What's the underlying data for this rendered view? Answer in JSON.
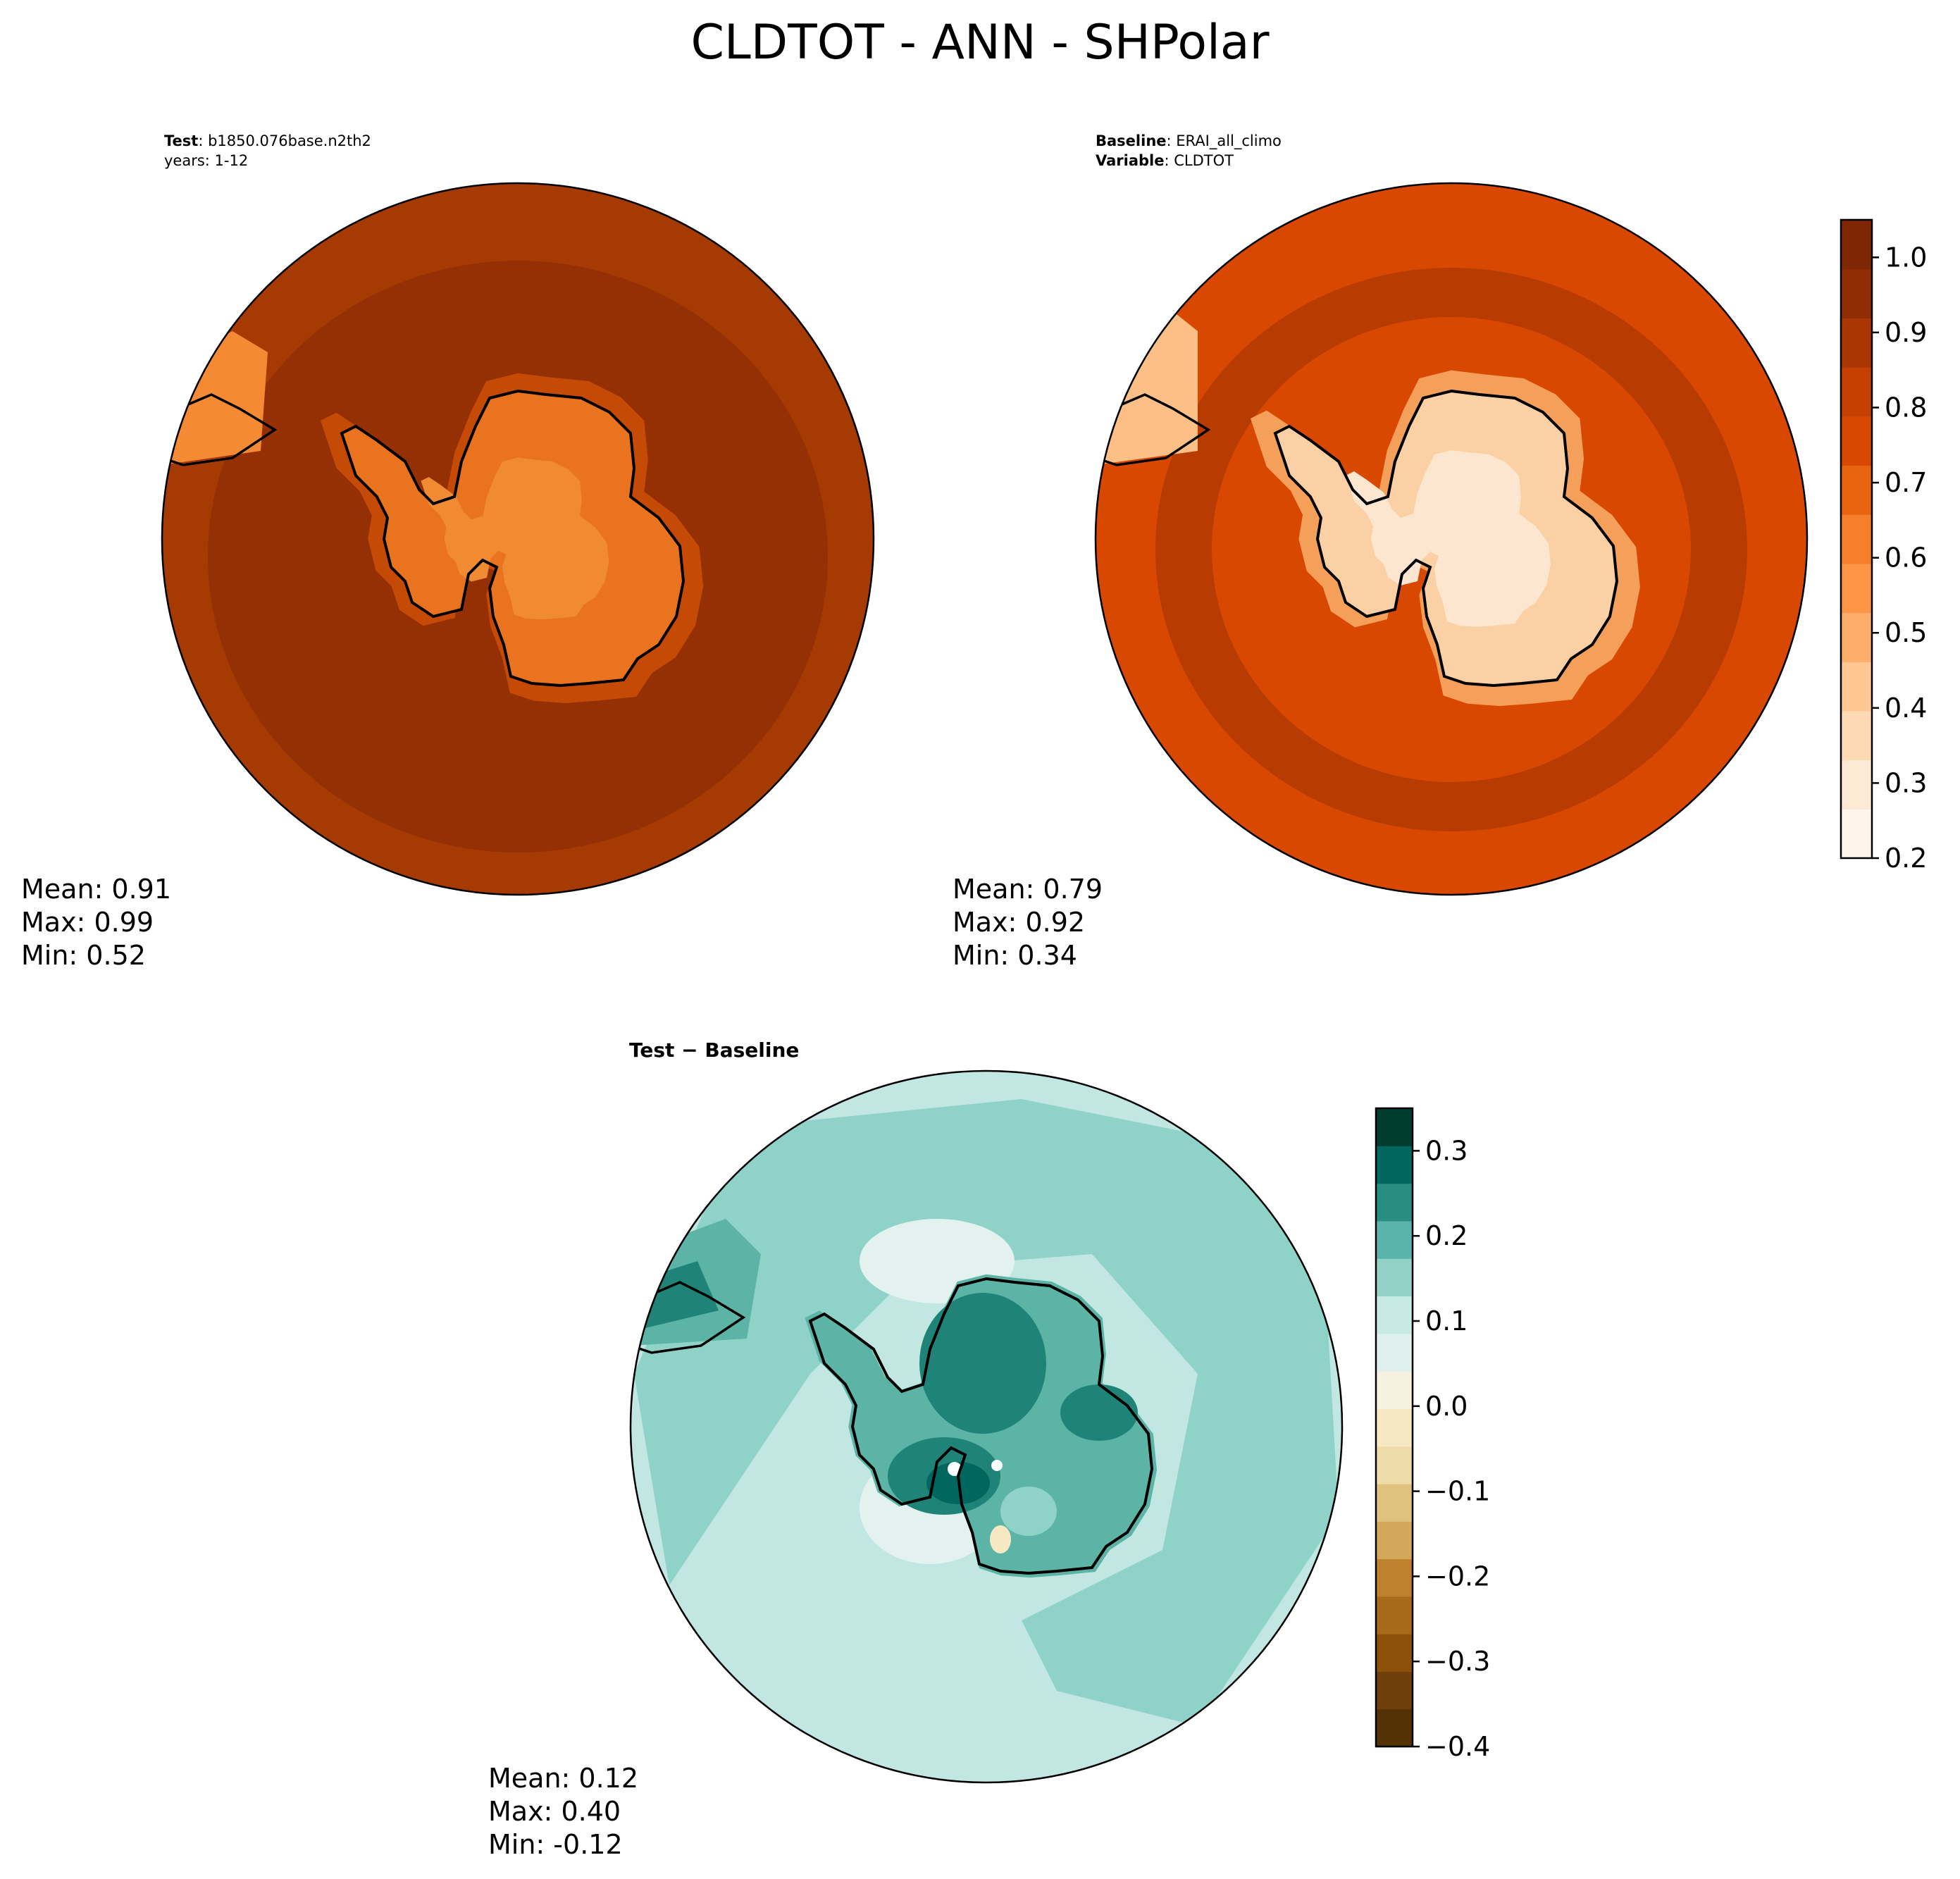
{
  "figure": {
    "title": "CLDTOT - ANN - SHPolar"
  },
  "panels": [
    {
      "id": "test",
      "header": [
        {
          "label": "Test",
          "sep": ":",
          "value": " b1850.076base.n2th2"
        },
        {
          "label": "",
          "sep": "",
          "value": "years: 1-12"
        }
      ],
      "stats": [
        "Mean:  0.91",
        "Max:  0.99",
        "Min:  0.52"
      ],
      "colors": {
        "outer": "#a63a03",
        "ring": "#953004",
        "coast": "#c54a06",
        "inland": "#e9731e",
        "interior": "#f08a33"
      }
    },
    {
      "id": "baseline",
      "header": [
        {
          "label": "Baseline",
          "sep": ":",
          "value": " ERAI_all_climo"
        },
        {
          "label": "Variable",
          "sep": ":",
          "value": " CLDTOT"
        }
      ],
      "stats": [
        "Mean:  0.79",
        "Max:  0.92",
        "Min:  0.34"
      ],
      "colors": {
        "outer": "#d94801",
        "ring": "#b83c02",
        "coast": "#f5a05a",
        "inland": "#fcd0a5",
        "interior": "#fde6cf"
      }
    },
    {
      "id": "diff",
      "title": "Test − Baseline",
      "stats": [
        "Mean:  0.12",
        "Max:  0.40",
        "Min: -0.12"
      ],
      "colors": {
        "outer": "#c2e6e1",
        "ring": "#e4f2ef",
        "mid": "#8fd3c8",
        "land": "#5cb4a6",
        "core": "#1f8377",
        "peak": "#01665e"
      }
    }
  ],
  "chart_data": [
    {
      "type": "heatmap",
      "panel": "test",
      "projection": "south polar stereographic",
      "summary": {
        "mean": 0.91,
        "max": 0.99,
        "min": 0.52
      }
    },
    {
      "type": "heatmap",
      "panel": "baseline",
      "projection": "south polar stereographic",
      "summary": {
        "mean": 0.79,
        "max": 0.92,
        "min": 0.34
      },
      "colorbar": {
        "range": [
          0.2,
          1.05
        ],
        "ticks": [
          0.2,
          0.3,
          0.4,
          0.5,
          0.6,
          0.7,
          0.8,
          0.9,
          1.0
        ],
        "tick_labels": [
          "0.2",
          "0.3",
          "0.4",
          "0.5",
          "0.6",
          "0.7",
          "0.8",
          "0.9",
          "1.0"
        ],
        "colors": [
          "#fff5eb",
          "#fee9d4",
          "#fdd9b4",
          "#fdc692",
          "#fdae6b",
          "#fd9546",
          "#f57f2a",
          "#e8640f",
          "#d94801",
          "#c44103",
          "#a93603",
          "#8f2d04",
          "#7f2704"
        ]
      }
    },
    {
      "type": "heatmap",
      "panel": "diff",
      "projection": "south polar stereographic",
      "summary": {
        "mean": 0.12,
        "max": 0.4,
        "min": -0.12
      },
      "colorbar": {
        "range": [
          -0.4,
          0.35
        ],
        "ticks": [
          -0.4,
          -0.3,
          -0.2,
          -0.1,
          0.0,
          0.1,
          0.2,
          0.3
        ],
        "tick_labels": [
          "−0.4",
          "−0.3",
          "−0.2",
          "−0.1",
          "0.0",
          "0.1",
          "0.2",
          "0.3"
        ],
        "colors": [
          "#543005",
          "#6e3f0b",
          "#8c510a",
          "#a8691a",
          "#bf812d",
          "#d4a85a",
          "#dfc27d",
          "#eddcaa",
          "#f6e8c3",
          "#f5f0e0",
          "#e0f0ec",
          "#c7eae5",
          "#93d2c7",
          "#5ab4ac",
          "#2a8d84",
          "#01665e",
          "#003c30"
        ]
      }
    }
  ]
}
